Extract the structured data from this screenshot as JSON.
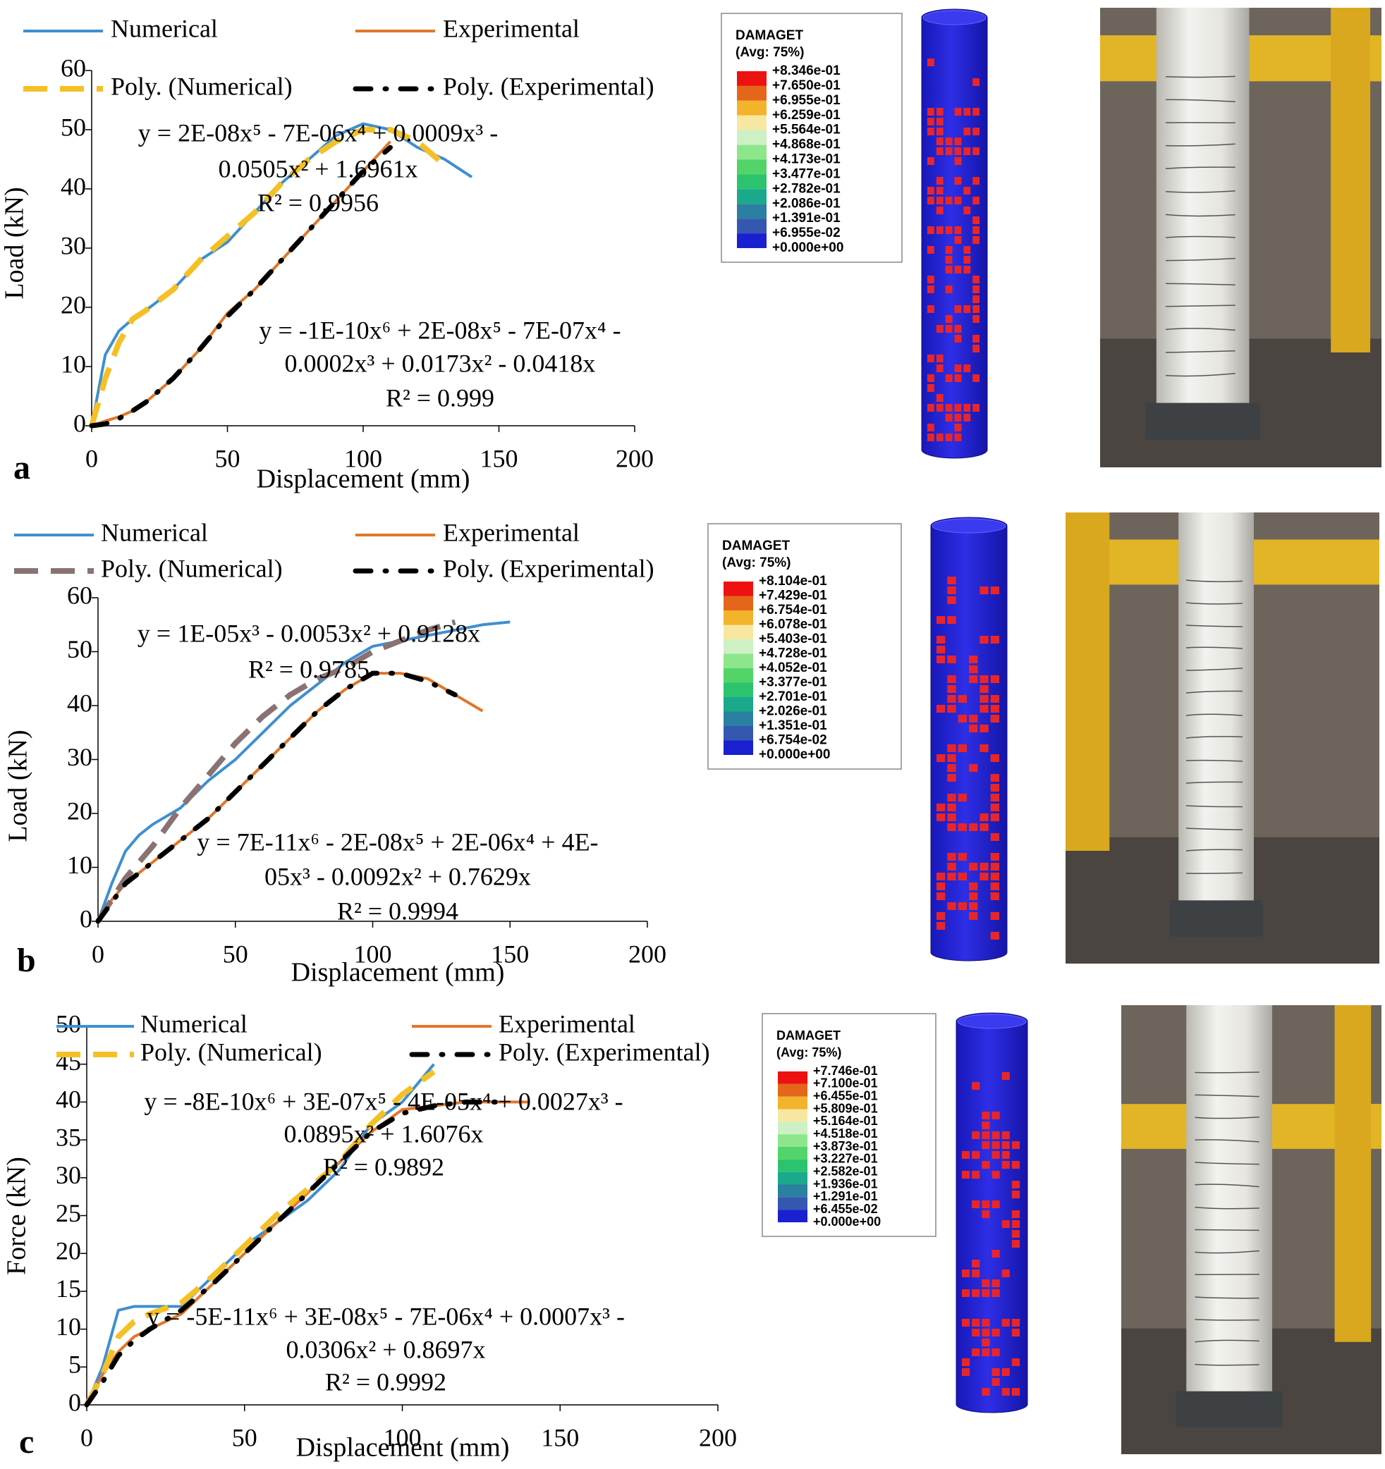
{
  "chart_data": [
    {
      "type": "line",
      "label": "a",
      "xlabel": "Displacement (mm)",
      "ylabel": "Load (kN)",
      "x": [
        0,
        5,
        10,
        15,
        20,
        30,
        40,
        50,
        60,
        70,
        80,
        90,
        100,
        110,
        120,
        130,
        140,
        150
      ],
      "series": [
        {
          "name": "Numerical",
          "color": "#3f8fcf",
          "style": "solid",
          "values": [
            0,
            12,
            16,
            18,
            19.5,
            23,
            28,
            31,
            36,
            41,
            45,
            49,
            51,
            50,
            47,
            45,
            42,
            null
          ]
        },
        {
          "name": "Experimental",
          "color": "#e0772a",
          "style": "solid",
          "values": [
            0,
            0.8,
            1.5,
            2.5,
            4,
            8,
            13,
            19,
            23,
            28,
            33,
            38,
            43,
            48,
            null,
            null,
            null,
            null
          ]
        },
        {
          "name": "Poly. (Numerical)",
          "color": "#f5c026",
          "style": "dashed",
          "values": [
            0,
            8,
            14,
            18,
            19.5,
            23,
            28,
            32,
            36,
            41,
            45,
            48,
            50,
            50,
            48,
            44,
            null,
            null
          ]
        },
        {
          "name": "Poly. (Experimental)",
          "color": "#000000",
          "style": "dashdot",
          "values": [
            0,
            0.3,
            1.2,
            2.5,
            4,
            8,
            13,
            18.5,
            23,
            28,
            33,
            38,
            43,
            47,
            null,
            null,
            null,
            null
          ]
        }
      ],
      "xlim": [
        0,
        200
      ],
      "ylim": [
        0,
        60
      ],
      "xticks": [
        0,
        50,
        100,
        150,
        200
      ],
      "yticks": [
        0,
        10,
        20,
        30,
        40,
        50,
        60
      ],
      "equations": [
        [
          "y = 2E-08x⁵ - 7E-06x⁴ + 0.0009x³ -",
          "0.0505x² + 1.6961x",
          "R² = 0.9956"
        ],
        [
          "y = -1E-10x⁶ + 2E-08x⁵ - 7E-07x⁴ -",
          "0.0002x³ + 0.0173x² - 0.0418x",
          "R² = 0.999"
        ]
      ]
    },
    {
      "type": "line",
      "label": "b",
      "xlabel": "Displacement (mm)",
      "ylabel": "Load (kN)",
      "x": [
        0,
        5,
        10,
        15,
        20,
        30,
        40,
        50,
        60,
        70,
        80,
        90,
        100,
        110,
        120,
        130,
        140,
        150
      ],
      "series": [
        {
          "name": "Numerical",
          "color": "#3f8fcf",
          "style": "solid",
          "values": [
            0,
            7,
            13,
            16,
            18,
            21,
            26,
            30,
            35,
            40,
            44,
            48,
            51,
            52,
            53,
            54,
            55,
            55.5
          ]
        },
        {
          "name": "Experimental",
          "color": "#e0772a",
          "style": "solid",
          "values": [
            0,
            4,
            7,
            9,
            11,
            15,
            19,
            24,
            29,
            34,
            39,
            43,
            46,
            46,
            45,
            42,
            39,
            null
          ]
        },
        {
          "name": "Poly. (Numerical)",
          "color": "#8a7272",
          "style": "dashed",
          "values": [
            0,
            4,
            8,
            11,
            14,
            21,
            27,
            33,
            38,
            42,
            45,
            47,
            50,
            52,
            54,
            55.5,
            null,
            null
          ]
        },
        {
          "name": "Poly. (Experimental)",
          "color": "#000000",
          "style": "dashdot",
          "values": [
            0,
            3.5,
            7,
            9,
            11,
            15,
            19,
            24,
            29,
            34,
            39,
            43,
            46,
            46,
            44.5,
            42,
            null,
            null
          ]
        }
      ],
      "xlim": [
        0,
        200
      ],
      "ylim": [
        0,
        60
      ],
      "xticks": [
        0,
        50,
        100,
        150,
        200
      ],
      "yticks": [
        0,
        10,
        20,
        30,
        40,
        50,
        60
      ],
      "equations": [
        [
          "y = 1E-05x³ - 0.0053x² + 0.9128x",
          "R² = 0.9785"
        ],
        [
          "y = 7E-11x⁶ - 2E-08x⁵ + 2E-06x⁴ + 4E-",
          "05x³ - 0.0092x² + 0.7629x",
          "R² = 0.9994"
        ]
      ]
    },
    {
      "type": "line",
      "label": "c",
      "xlabel": "Displacement (mm)",
      "ylabel": "Force (kN)",
      "x": [
        0,
        5,
        10,
        15,
        20,
        30,
        40,
        50,
        60,
        70,
        80,
        90,
        100,
        110,
        120,
        130,
        140,
        150
      ],
      "series": [
        {
          "name": "Numerical",
          "color": "#3f8fcf",
          "style": "solid",
          "values": [
            0,
            5,
            12.5,
            13,
            13,
            13,
            17,
            21,
            24,
            27,
            31,
            37,
            40,
            45,
            null,
            null,
            null,
            null
          ]
        },
        {
          "name": "Experimental",
          "color": "#e0772a",
          "style": "solid",
          "values": [
            0,
            4,
            7,
            9,
            10,
            12,
            16,
            20,
            24,
            28,
            32,
            36,
            39,
            39.5,
            40,
            40,
            40,
            null
          ]
        },
        {
          "name": "Poly. (Numerical)",
          "color": "#f5c026",
          "style": "dashed",
          "values": [
            0,
            4,
            9,
            11,
            12,
            13.5,
            17,
            21,
            25,
            28.5,
            32,
            37,
            41,
            44,
            null,
            null,
            null,
            null
          ]
        },
        {
          "name": "Poly. (Experimental)",
          "color": "#000000",
          "style": "dashdot",
          "values": [
            0,
            3,
            6.5,
            8.5,
            10,
            12.5,
            16,
            20,
            24,
            28,
            32,
            36,
            38.5,
            39.5,
            40,
            40,
            null,
            null
          ]
        }
      ],
      "xlim": [
        0,
        200
      ],
      "ylim": [
        0,
        50
      ],
      "xticks": [
        0,
        50,
        100,
        150,
        200
      ],
      "yticks": [
        0,
        5,
        10,
        15,
        20,
        25,
        30,
        35,
        40,
        45,
        50
      ],
      "equations": [
        [
          "y = -8E-10x⁶ + 3E-07x⁵ - 4E-05x⁴ + 0.0027x³ -",
          "0.0895x² + 1.6076x",
          "R² = 0.9892"
        ],
        [
          "y = -5E-11x⁶ + 3E-08x⁵ - 7E-06x⁴ + 0.0007x³ -",
          "0.0306x² + 0.8697x",
          "R² = 0.9992"
        ]
      ]
    }
  ],
  "contour_legends": [
    {
      "title": "DAMAGET",
      "subtitle": "(Avg: 75%)",
      "values": [
        "+8.346e-01",
        "+7.650e-01",
        "+6.955e-01",
        "+6.259e-01",
        "+5.564e-01",
        "+4.868e-01",
        "+4.173e-01",
        "+3.477e-01",
        "+2.782e-01",
        "+2.086e-01",
        "+1.391e-01",
        "+6.955e-02",
        "+0.000e+00"
      ]
    },
    {
      "title": "DAMAGET",
      "subtitle": "(Avg: 75%)",
      "values": [
        "+8.104e-01",
        "+7.429e-01",
        "+6.754e-01",
        "+6.078e-01",
        "+5.403e-01",
        "+4.728e-01",
        "+4.052e-01",
        "+3.377e-01",
        "+2.701e-01",
        "+2.026e-01",
        "+1.351e-01",
        "+6.754e-02",
        "+0.000e+00"
      ]
    },
    {
      "title": "DAMAGET",
      "subtitle": "(Avg: 75%)",
      "values": [
        "+7.746e-01",
        "+7.100e-01",
        "+6.455e-01",
        "+5.809e-01",
        "+5.164e-01",
        "+4.518e-01",
        "+3.873e-01",
        "+3.227e-01",
        "+2.582e-01",
        "+1.936e-01",
        "+1.291e-01",
        "+6.455e-02",
        "+0.000e+00"
      ]
    }
  ]
}
